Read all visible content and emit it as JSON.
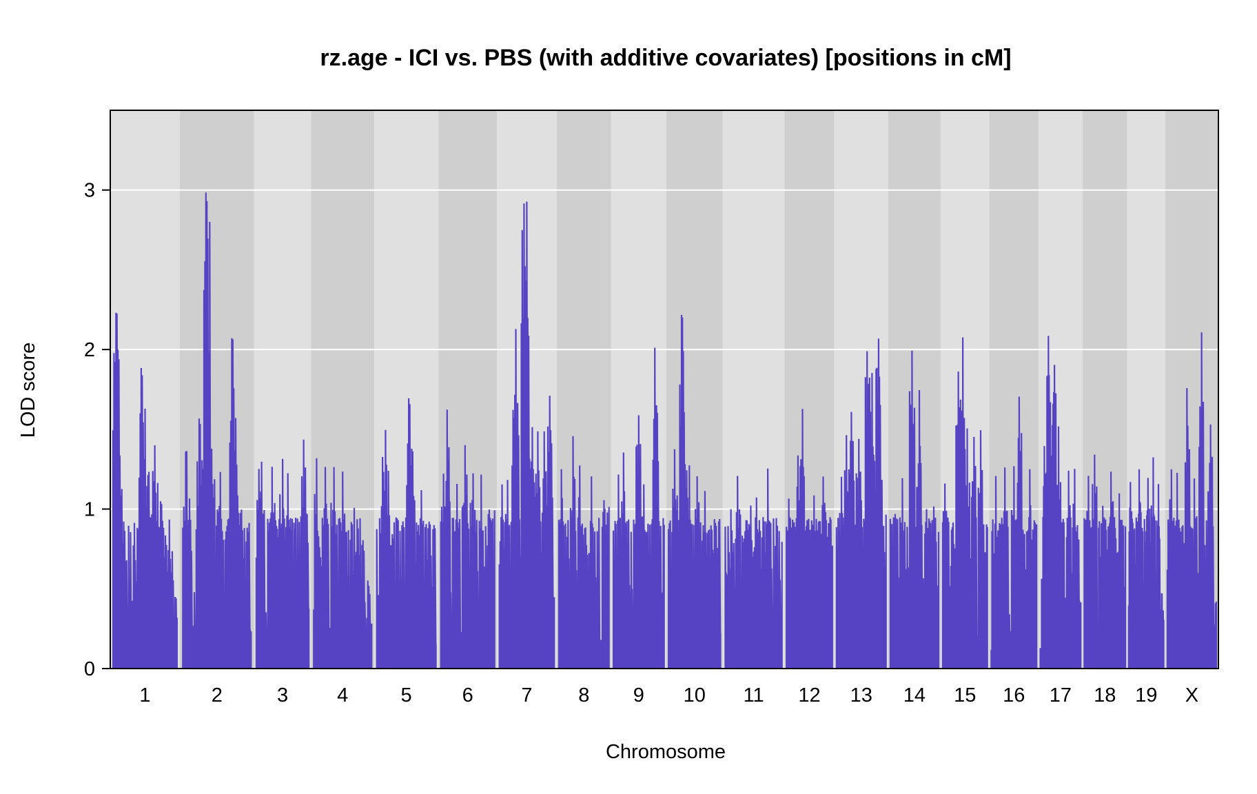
{
  "chart_data": {
    "type": "line",
    "title": "rz.age - ICI vs. PBS (with additive covariates) [positions in cM]",
    "xlabel": "Chromosome",
    "ylabel": "LOD score",
    "ylim": [
      0,
      3.5
    ],
    "yticks": [
      0,
      1,
      2,
      3
    ],
    "grid": true,
    "line_color": "#5543c3",
    "band_colors": [
      "#e0e0e0",
      "#cfcfcf"
    ],
    "chromosomes": [
      {
        "label": "1",
        "length": 96,
        "baseline": 0.95,
        "peaks": [
          [
            0.02,
            1.88
          ],
          [
            0.05,
            2.25
          ],
          [
            0.1,
            1.37
          ],
          [
            0.45,
            1.9
          ],
          [
            0.5,
            1.42
          ],
          [
            0.55,
            1.25
          ],
          [
            0.62,
            1.22
          ],
          [
            0.65,
            1.45
          ],
          [
            0.75,
            1.05
          ],
          [
            0.88,
            0.95
          ]
        ],
        "tail": 0.4
      },
      {
        "label": "2",
        "length": 103,
        "baseline": 0.95,
        "peaks": [
          [
            0.05,
            1.37
          ],
          [
            0.25,
            1.59
          ],
          [
            0.35,
            3.02
          ],
          [
            0.42,
            1.39
          ],
          [
            0.55,
            1.27
          ],
          [
            0.7,
            1.43
          ],
          [
            0.73,
            2.08
          ],
          [
            0.78,
            1.33
          ],
          [
            0.85,
            1.0
          ]
        ],
        "tail": 0.95
      },
      {
        "label": "3",
        "length": 77,
        "baseline": 0.95,
        "peaks": [
          [
            0.05,
            1.28
          ],
          [
            0.1,
            1.33
          ],
          [
            0.3,
            1.3
          ],
          [
            0.5,
            1.33
          ],
          [
            0.6,
            1.25
          ],
          [
            0.9,
            1.49
          ]
        ],
        "tail": 1.0
      },
      {
        "label": "4",
        "length": 86,
        "baseline": 0.95,
        "peaks": [
          [
            0.05,
            1.32
          ],
          [
            0.2,
            1.27
          ],
          [
            0.35,
            1.29
          ],
          [
            0.5,
            1.27
          ],
          [
            0.7,
            1.04
          ],
          [
            0.8,
            0.9
          ]
        ],
        "tail": 0.42
      },
      {
        "label": "5",
        "length": 88,
        "baseline": 0.95,
        "peaks": [
          [
            0.1,
            1.34
          ],
          [
            0.15,
            1.51
          ],
          [
            0.2,
            1.27
          ],
          [
            0.55,
            1.72
          ],
          [
            0.6,
            1.38
          ],
          [
            0.75,
            1.15
          ],
          [
            0.9,
            0.93
          ]
        ],
        "tail": 0.93
      },
      {
        "label": "6",
        "length": 79,
        "baseline": 0.95,
        "peaks": [
          [
            0.05,
            1.26
          ],
          [
            0.12,
            1.65
          ],
          [
            0.3,
            1.2
          ],
          [
            0.45,
            1.45
          ],
          [
            0.6,
            1.27
          ],
          [
            0.75,
            1.22
          ],
          [
            0.9,
            1.0
          ]
        ],
        "tail": 1.0
      },
      {
        "label": "7",
        "length": 81,
        "baseline": 0.95,
        "peaks": [
          [
            0.05,
            1.2
          ],
          [
            0.15,
            1.2
          ],
          [
            0.28,
            1.73
          ],
          [
            0.3,
            2.13
          ],
          [
            0.45,
            2.97
          ],
          [
            0.5,
            3.0
          ],
          [
            0.6,
            1.52
          ],
          [
            0.7,
            1.5
          ],
          [
            0.82,
            1.52
          ],
          [
            0.92,
            1.72
          ]
        ],
        "tail": 0.95
      },
      {
        "label": "8",
        "length": 73,
        "baseline": 0.95,
        "peaks": [
          [
            0.05,
            1.27
          ],
          [
            0.28,
            1.48
          ],
          [
            0.42,
            1.29
          ],
          [
            0.65,
            1.21
          ],
          [
            0.9,
            1.08
          ]
        ],
        "tail": 1.05
      },
      {
        "label": "9",
        "length": 74,
        "baseline": 0.95,
        "peaks": [
          [
            0.1,
            1.22
          ],
          [
            0.2,
            1.37
          ],
          [
            0.5,
            1.62
          ],
          [
            0.6,
            1.17
          ],
          [
            0.82,
            2.05
          ],
          [
            0.88,
            1.35
          ]
        ],
        "tail": 0.95
      },
      {
        "label": "10",
        "length": 76,
        "baseline": 0.95,
        "peaks": [
          [
            0.12,
            1.38
          ],
          [
            0.26,
            2.25
          ],
          [
            0.3,
            1.53
          ],
          [
            0.4,
            1.28
          ],
          [
            0.55,
            1.25
          ],
          [
            0.7,
            1.12
          ],
          [
            0.88,
            0.97
          ]
        ],
        "tail": 0.95
      },
      {
        "label": "11",
        "length": 84,
        "baseline": 0.95,
        "peaks": [
          [
            0.1,
            1.03
          ],
          [
            0.22,
            1.25
          ],
          [
            0.45,
            1.06
          ],
          [
            0.55,
            1.09
          ],
          [
            0.75,
            1.27
          ],
          [
            0.9,
            0.98
          ]
        ],
        "tail": 0.95
      },
      {
        "label": "12",
        "length": 66,
        "baseline": 0.95,
        "peaks": [
          [
            0.05,
            1.08
          ],
          [
            0.25,
            1.38
          ],
          [
            0.35,
            1.68
          ],
          [
            0.6,
            1.11
          ],
          [
            0.8,
            1.25
          ]
        ],
        "tail": 0.95
      },
      {
        "label": "13",
        "length": 72,
        "baseline": 0.95,
        "peaks": [
          [
            0.1,
            1.24
          ],
          [
            0.2,
            1.5
          ],
          [
            0.3,
            1.64
          ],
          [
            0.45,
            1.44
          ],
          [
            0.62,
            2.04
          ],
          [
            0.72,
            1.92
          ],
          [
            0.85,
            2.14
          ],
          [
            0.92,
            1.2
          ]
        ],
        "tail": 1.0
      },
      {
        "label": "14",
        "length": 70,
        "baseline": 0.95,
        "peaks": [
          [
            0.1,
            1.0
          ],
          [
            0.25,
            1.23
          ],
          [
            0.45,
            2.01
          ],
          [
            0.6,
            1.79
          ],
          [
            0.75,
            1.01
          ],
          [
            0.9,
            1.03
          ]
        ],
        "tail": 0.95
      },
      {
        "label": "15",
        "length": 64,
        "baseline": 0.95,
        "peaks": [
          [
            0.05,
            1.2
          ],
          [
            0.35,
            1.89
          ],
          [
            0.45,
            2.11
          ],
          [
            0.55,
            1.51
          ],
          [
            0.7,
            1.48
          ],
          [
            0.85,
            1.5
          ]
        ],
        "tail": 0.95
      },
      {
        "label": "16",
        "length": 65,
        "baseline": 0.95,
        "peaks": [
          [
            0.1,
            1.21
          ],
          [
            0.3,
            1.27
          ],
          [
            0.5,
            1.3
          ],
          [
            0.62,
            1.72
          ],
          [
            0.85,
            1.28
          ]
        ],
        "tail": 0.95
      },
      {
        "label": "17",
        "length": 57,
        "baseline": 0.95,
        "peaks": [
          [
            0.1,
            1.44
          ],
          [
            0.2,
            2.1
          ],
          [
            0.25,
            1.72
          ],
          [
            0.35,
            1.96
          ],
          [
            0.45,
            1.56
          ],
          [
            0.7,
            1.26
          ],
          [
            0.85,
            1.27
          ]
        ],
        "tail": 0.95
      },
      {
        "label": "18",
        "length": 58,
        "baseline": 0.95,
        "peaks": [
          [
            0.1,
            1.23
          ],
          [
            0.25,
            1.37
          ],
          [
            0.45,
            1.03
          ],
          [
            0.65,
            1.25
          ],
          [
            0.85,
            1.13
          ]
        ],
        "tail": 0.95
      },
      {
        "label": "19",
        "length": 48,
        "baseline": 0.95,
        "peaks": [
          [
            0.05,
            1.21
          ],
          [
            0.3,
            1.28
          ],
          [
            0.55,
            1.22
          ],
          [
            0.7,
            1.35
          ],
          [
            0.85,
            1.17
          ]
        ],
        "tail": 0.35
      },
      {
        "label": "X",
        "length": 71,
        "baseline": 0.95,
        "peaks": [
          [
            0.08,
            1.27
          ],
          [
            0.2,
            1.27
          ],
          [
            0.4,
            1.8
          ],
          [
            0.55,
            1.2
          ],
          [
            0.7,
            2.12
          ],
          [
            0.88,
            1.55
          ]
        ],
        "tail": 0.95
      }
    ]
  }
}
